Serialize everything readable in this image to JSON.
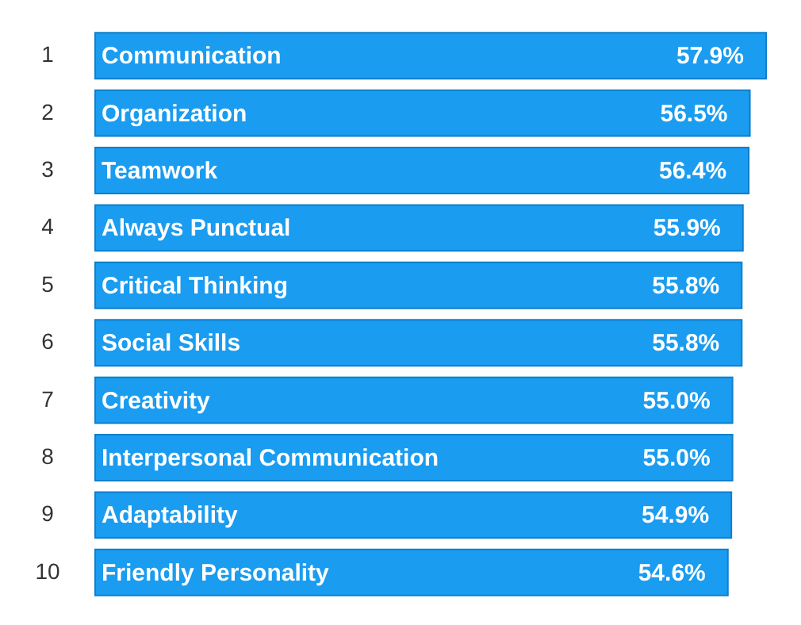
{
  "chart_data": {
    "type": "bar",
    "orientation": "horizontal",
    "categories": [
      "Communication",
      "Organization",
      "Teamwork",
      "Always Punctual",
      "Critical Thinking",
      "Social Skills",
      "Creativity",
      "Interpersonal Communication",
      "Adaptability",
      "Friendly Personality"
    ],
    "values": [
      57.9,
      56.5,
      56.4,
      55.9,
      55.8,
      55.8,
      55.0,
      55.0,
      54.9,
      54.6
    ],
    "value_labels": [
      "57.9%",
      "56.5%",
      "56.4%",
      "55.9%",
      "55.8%",
      "55.8%",
      "55.0%",
      "55.0%",
      "54.9%",
      "54.6%"
    ],
    "color": "#1a9cf0",
    "annotations": [
      "1",
      "2",
      "3",
      "4",
      "5",
      "6",
      "7",
      "8",
      "9",
      "10"
    ]
  }
}
